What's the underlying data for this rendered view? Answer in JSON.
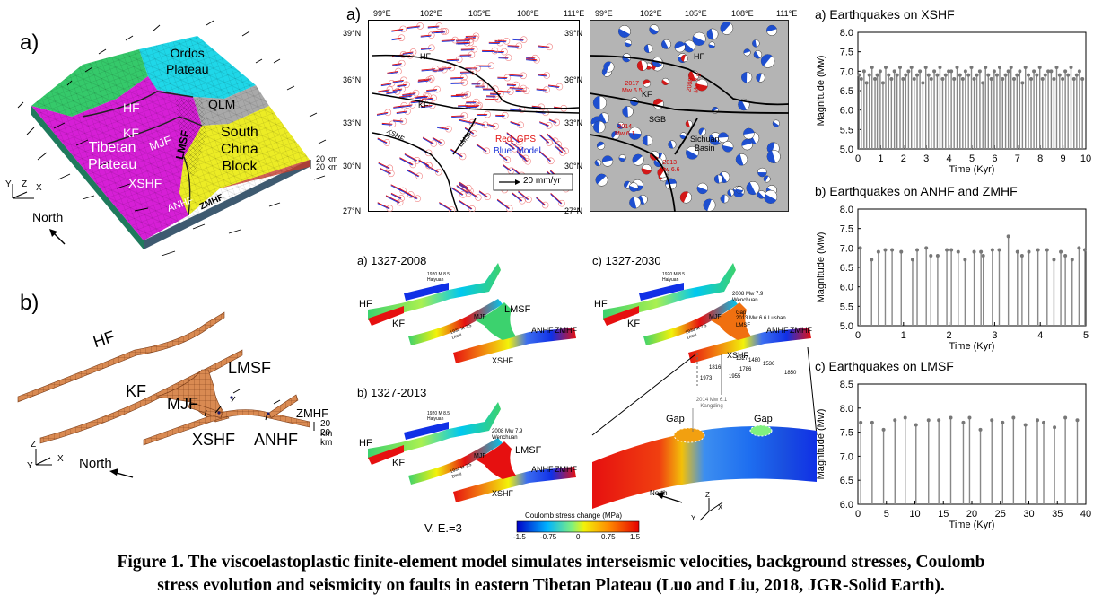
{
  "panel_left": {
    "a_label": "a)",
    "b_label": "b)",
    "regions": {
      "ordos": "Ordos",
      "plateau": "Plateau",
      "qlm": "QLM",
      "south": "South",
      "china": "China",
      "block": "Block",
      "tibetan": "Tibetan",
      "tibetan_plateau": "Plateau"
    },
    "faults": {
      "hf": "HF",
      "kf": "KF",
      "mjf": "MJF",
      "lmsf": "LMSF",
      "xshf": "XSHF",
      "anhf": "ANHF",
      "zmhf": "ZMHF"
    },
    "depth1": "20 km",
    "depth2": "20 km",
    "axis_y": "Y",
    "axis_z": "Z",
    "axis_x": "X",
    "north": "North"
  },
  "panel_maps": {
    "a_label": "a)",
    "lon_ticks": [
      "99°E",
      "102°E",
      "105°E",
      "108°E",
      "111°E"
    ],
    "lat_ticks": [
      "39°N",
      "36°N",
      "33°N",
      "30°N",
      "27°N"
    ],
    "legend_gps": "Red: GPS",
    "legend_model": "Blue: Model",
    "scale": "20 mm/yr",
    "fault_labels": {
      "hf": "HF",
      "kf": "KF",
      "xshf": "XSHF",
      "lmsf": "LMSF",
      "sgb": "SGB",
      "sichuan": "Sichuan",
      "basin": "Basin"
    },
    "eq_labels": [
      "2017",
      "Mw 6.5",
      "2008",
      "Mw 7.9",
      "2014",
      "Mw 6.1",
      "2013",
      "Mw 6.6"
    ]
  },
  "panel_stress": {
    "a_title": "a) 1327-2008",
    "b_title": "b) 1327-2013",
    "c_title": "c) 1327-2030",
    "fault_labels": {
      "hf": "HF",
      "kf": "KF",
      "mjf": "MJF",
      "lmsf": "LMSF",
      "anhf": "ANHF",
      "zmhf": "ZMHF",
      "xshf": "XSHF"
    },
    "ann_haiyuan": "1920 M 8.5 Haiyuan",
    "ann_diexi": "1933 M 7.5 Diexi",
    "ann_wenchuan": "2008 Mw 7.9 Wenchuan",
    "ann_gap": "Gap",
    "ann_lushan": "2013 Mw 6.6 Lushan",
    "ann_kangding": "2014 Mw 6.1 Kangding",
    "years": [
      "1327",
      "1480",
      "1536",
      "1816",
      "1786",
      "1973",
      "1955",
      "1850"
    ],
    "gap": "Gap",
    "ve": "V. E.=3",
    "colorbar_title": "Coulomb stress change (MPa)",
    "colorbar_ticks": [
      "-1.5",
      "-0.75",
      "0",
      "0.75",
      "1.5"
    ],
    "north": "North",
    "axis_z": "Z",
    "axis_y": "Y",
    "axis_x": "X"
  },
  "chart_data": [
    {
      "type": "bar",
      "title": "a) Earthquakes on XSHF",
      "xlabel": "Time (Kyr)",
      "ylabel": "Magnitude (Mw)",
      "xlim": [
        0,
        10
      ],
      "ylim": [
        5.0,
        8.0
      ],
      "xticks": [
        "0",
        "1",
        "2",
        "3",
        "4",
        "5",
        "6",
        "7",
        "8",
        "9",
        "10"
      ],
      "yticks": [
        "5.0",
        "5.5",
        "6.0",
        "6.5",
        "7.0",
        "7.5",
        "8.0"
      ],
      "x": [
        0.05,
        0.15,
        0.27,
        0.38,
        0.5,
        0.62,
        0.75,
        0.85,
        0.98,
        1.1,
        1.22,
        1.35,
        1.47,
        1.6,
        1.72,
        1.85,
        1.98,
        2.1,
        2.22,
        2.35,
        2.47,
        2.6,
        2.72,
        2.85,
        2.98,
        3.1,
        3.22,
        3.35,
        3.48,
        3.6,
        3.72,
        3.85,
        3.98,
        4.1,
        4.22,
        4.35,
        4.48,
        4.6,
        4.72,
        4.85,
        4.98,
        5.1,
        5.22,
        5.35,
        5.48,
        5.6,
        5.72,
        5.85,
        5.98,
        6.1,
        6.22,
        6.35,
        6.48,
        6.6,
        6.72,
        6.85,
        6.98,
        7.1,
        7.22,
        7.35,
        7.48,
        7.6,
        7.72,
        7.85,
        7.98,
        8.1,
        8.22,
        8.35,
        8.48,
        8.6,
        8.72,
        8.85,
        8.98,
        9.1,
        9.22,
        9.35,
        9.48,
        9.6,
        9.72,
        9.85
      ],
      "values": [
        6.9,
        6.8,
        7.0,
        6.7,
        6.9,
        7.1,
        6.8,
        6.9,
        7.0,
        6.7,
        7.1,
        6.9,
        6.8,
        7.0,
        6.9,
        7.1,
        6.8,
        6.9,
        7.0,
        7.1,
        6.8,
        6.9,
        7.0,
        6.7,
        7.1,
        6.9,
        6.8,
        7.0,
        6.9,
        7.1,
        6.8,
        6.9,
        7.0,
        7.0,
        6.8,
        7.1,
        6.9,
        6.8,
        7.0,
        6.9,
        7.1,
        6.8,
        6.9,
        7.0,
        6.7,
        7.1,
        6.9,
        6.8,
        7.0,
        6.9,
        7.1,
        6.8,
        6.9,
        7.0,
        7.1,
        6.8,
        6.9,
        7.0,
        6.7,
        7.1,
        6.9,
        6.8,
        7.0,
        6.9,
        7.1,
        6.8,
        6.9,
        7.0,
        7.0,
        6.8,
        7.1,
        6.9,
        6.8,
        7.0,
        6.9,
        7.1,
        6.8,
        6.9,
        7.0,
        6.8
      ]
    },
    {
      "type": "bar",
      "title": "b) Earthquakes on ANHF and ZMHF",
      "xlabel": "Time (Kyr)",
      "ylabel": "Magnitude (Mw)",
      "xlim": [
        0,
        5
      ],
      "ylim": [
        5.0,
        8.0
      ],
      "xticks": [
        "0",
        "1",
        "2",
        "3",
        "4",
        "5"
      ],
      "yticks": [
        "5.0",
        "5.5",
        "6.0",
        "6.5",
        "7.0",
        "7.5",
        "8.0"
      ],
      "x": [
        0.05,
        0.3,
        0.45,
        0.6,
        0.75,
        0.95,
        1.2,
        1.3,
        1.5,
        1.6,
        1.75,
        1.95,
        2.05,
        2.2,
        2.35,
        2.55,
        2.7,
        2.75,
        2.95,
        3.1,
        3.3,
        3.5,
        3.6,
        3.75,
        3.95,
        4.15,
        4.3,
        4.45,
        4.55,
        4.7,
        4.85,
        4.98
      ],
      "values": [
        7.0,
        6.7,
        6.9,
        6.95,
        6.95,
        6.9,
        6.7,
        6.95,
        7.0,
        6.8,
        6.8,
        6.95,
        6.95,
        6.9,
        6.7,
        6.9,
        6.9,
        6.8,
        6.95,
        6.95,
        7.3,
        6.9,
        6.8,
        6.9,
        6.95,
        6.95,
        6.7,
        6.9,
        6.8,
        6.7,
        7.0,
        6.95
      ]
    },
    {
      "type": "bar",
      "title": "c) Earthquakes on LMSF",
      "xlabel": "Time (Kyr)",
      "ylabel": "Magnitude (Mw)",
      "xlim": [
        0,
        40
      ],
      "ylim": [
        6.0,
        8.5
      ],
      "xticks": [
        "0",
        "5",
        "10",
        "15",
        "20",
        "25",
        "30",
        "35",
        "40"
      ],
      "yticks": [
        "6.0",
        "6.5",
        "7.0",
        "7.5",
        "8.0",
        "8.5"
      ],
      "x": [
        0.5,
        2.5,
        4.5,
        6.5,
        8.3,
        10.2,
        12.4,
        14.2,
        16.3,
        18.5,
        19.6,
        21.5,
        23.5,
        25.4,
        27.3,
        29.4,
        31.5,
        32.6,
        34.5,
        36.4,
        38.5
      ],
      "values": [
        7.7,
        7.7,
        7.55,
        7.75,
        7.8,
        7.65,
        7.75,
        7.75,
        7.8,
        7.7,
        7.8,
        7.55,
        7.75,
        7.7,
        7.8,
        7.65,
        7.75,
        7.7,
        7.6,
        7.8,
        7.75
      ]
    }
  ],
  "caption_line1": "Figure 1. The viscoelastoplastic finite-element model simulates interseismic velocities, background stresses, Coulomb",
  "caption_line2": "stress evolution and seismicity on faults in eastern Tibetan Plateau (Luo and Liu, 2018, JGR-Solid Earth)."
}
